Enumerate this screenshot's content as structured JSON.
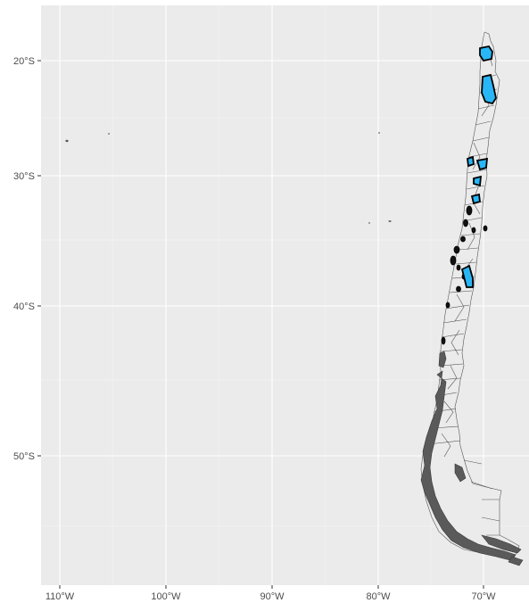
{
  "map": {
    "type": "choropleth",
    "region": "Chile",
    "axes": {
      "x_ticks": [
        "110°W",
        "100°W",
        "90°W",
        "80°W",
        "70°W"
      ],
      "y_ticks": [
        "20°S",
        "30°S",
        "40°S",
        "50°S"
      ],
      "lon_range": [
        -110.8,
        -66.2
      ],
      "lat_range": [
        -56.5,
        -16.0
      ]
    },
    "colors": {
      "panel": "#ebebeb",
      "highlight_fill": "#29b6f6",
      "default_fill": "#ebebeb",
      "border": "#555555",
      "dark_fill": "#111111"
    },
    "highlighted_areas": [
      "north-tarapaca",
      "antofagasta-interior",
      "atacama-coast",
      "atacama-interior",
      "coquimbo",
      "valparaiso-interior",
      "araucania"
    ]
  }
}
